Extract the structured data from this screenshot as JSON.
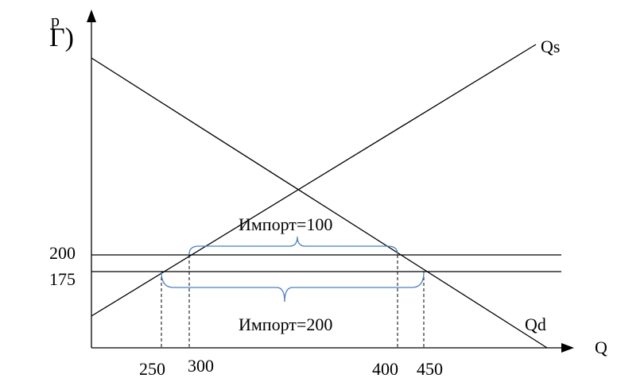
{
  "diagram": {
    "label": "Г)",
    "y_axis_label": "p",
    "x_axis_label": "Q",
    "supply_label": "Qs",
    "demand_label": "Qd",
    "price_levels": [
      "200",
      "175"
    ],
    "quantity_ticks": [
      "250",
      "300",
      "400",
      "450"
    ],
    "import_upper": "Импорт=100",
    "import_lower": "Импорт=200",
    "brace_color": "#4a7fc0"
  }
}
